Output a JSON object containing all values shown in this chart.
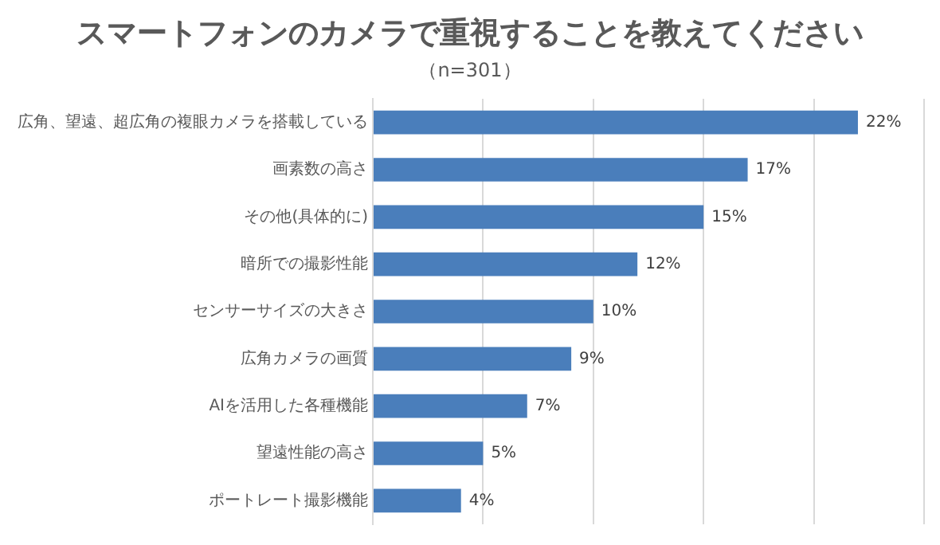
{
  "chart_data": {
    "type": "bar",
    "orientation": "horizontal",
    "title": "スマートフォンのカメラで重視することを教えてください",
    "subtitle": "（n=301）",
    "categories": [
      "広角、望遠、超広角の複眼カメラを搭載している",
      "画素数の高さ",
      "その他(具体的に)",
      "暗所での撮影性能",
      "センサーサイズの大きさ",
      "広角カメラの画質",
      "AIを活用した各種機能",
      "望遠性能の高さ",
      "ポートレート撮影機能"
    ],
    "values": [
      22,
      17,
      15,
      12,
      10,
      9,
      7,
      5,
      4
    ],
    "value_labels": [
      "22%",
      "17%",
      "15%",
      "12%",
      "10%",
      "9%",
      "7%",
      "5%",
      "4%"
    ],
    "color": "#4a7ebb",
    "xlim": [
      0,
      25
    ],
    "xticks": [
      {
        "value": 0,
        "label": null
      },
      {
        "value": 5,
        "label": null
      },
      {
        "value": 10,
        "label": null
      },
      {
        "value": 15,
        "label": null
      },
      {
        "value": 20,
        "label": null
      },
      {
        "value": 25,
        "label": null
      }
    ],
    "tick_labels": "y",
    "grid": "x",
    "legend": false
  }
}
